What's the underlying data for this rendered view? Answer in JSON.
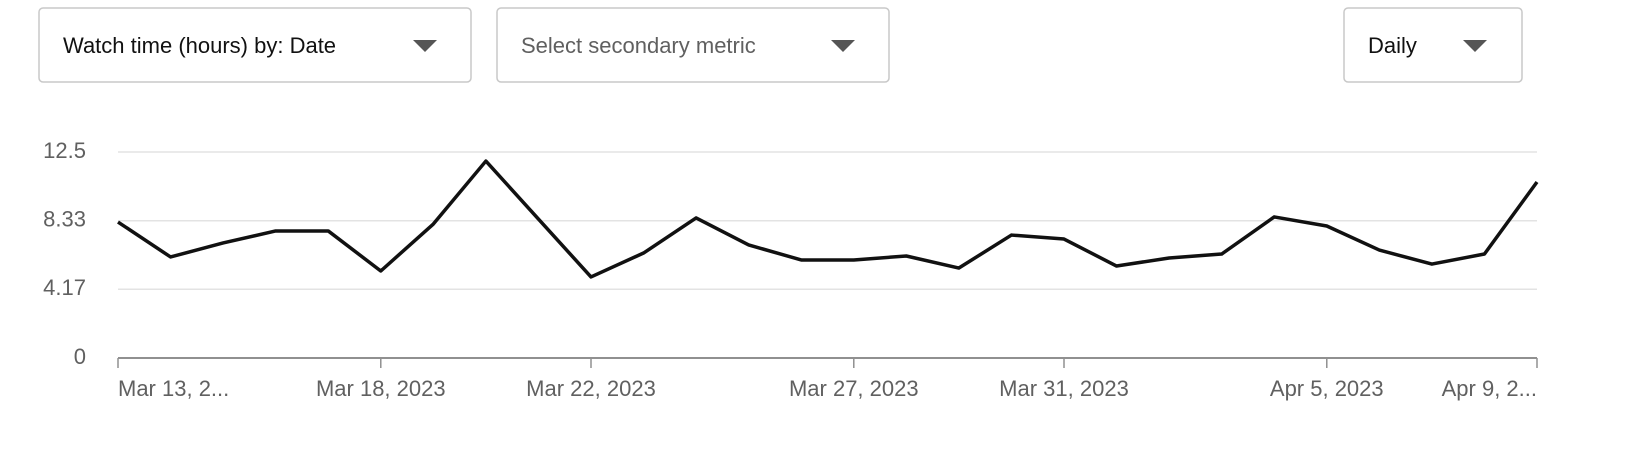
{
  "controls": [
    {
      "label": "Watch time (hours) by: Date"
    },
    {
      "label": "Select secondary metric"
    },
    {
      "label": "Daily"
    }
  ],
  "chart_data": {
    "type": "line",
    "color": "#111111",
    "grid": true,
    "x": [
      "2023-03-13",
      "2023-03-14",
      "2023-03-15",
      "2023-03-16",
      "2023-03-17",
      "2023-03-18",
      "2023-03-19",
      "2023-03-20",
      "2023-03-21",
      "2023-03-22",
      "2023-03-23",
      "2023-03-24",
      "2023-03-25",
      "2023-03-26",
      "2023-03-27",
      "2023-03-28",
      "2023-03-29",
      "2023-03-30",
      "2023-03-31",
      "2023-04-01",
      "2023-04-02",
      "2023-04-03",
      "2023-04-04",
      "2023-04-05",
      "2023-04-06",
      "2023-04-07",
      "2023-04-08",
      "2023-04-09"
    ],
    "values": [
      8.25,
      6.13,
      6.98,
      7.71,
      7.71,
      5.28,
      8.13,
      11.95,
      8.43,
      4.92,
      6.37,
      8.5,
      6.86,
      5.95,
      5.95,
      6.19,
      5.46,
      7.46,
      7.22,
      5.58,
      6.07,
      6.31,
      8.56,
      8.01,
      6.55,
      5.7,
      6.31,
      10.68
    ],
    "xlim": [
      "2023-03-13",
      "2023-04-09"
    ],
    "xticks": [
      {
        "value": "2023-03-13",
        "label": "Mar 13, 2..."
      },
      {
        "value": "2023-03-18",
        "label": "Mar 18, 2023"
      },
      {
        "value": "2023-03-22",
        "label": "Mar 22, 2023"
      },
      {
        "value": "2023-03-27",
        "label": "Mar 27, 2023"
      },
      {
        "value": "2023-03-31",
        "label": "Mar 31, 2023"
      },
      {
        "value": "2023-04-05",
        "label": "Apr 5, 2023"
      },
      {
        "value": "2023-04-09",
        "label": "Apr 9, 2..."
      }
    ],
    "ylim": [
      0,
      12.5
    ],
    "yticks": [
      0,
      4.17,
      8.33,
      12.5
    ]
  }
}
